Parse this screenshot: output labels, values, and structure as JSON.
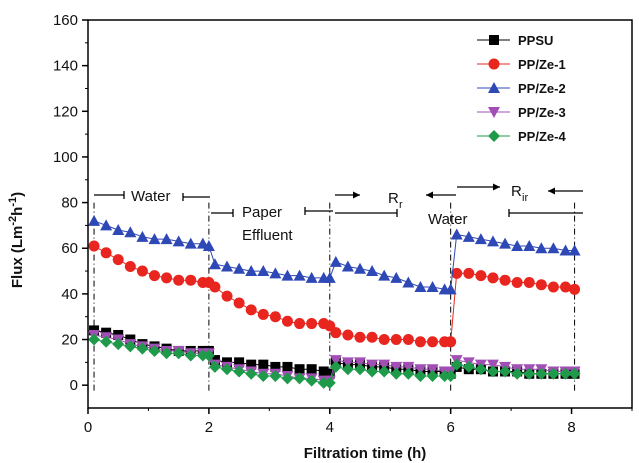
{
  "chart_data": {
    "type": "line",
    "title": "",
    "xlabel": "Filtration time (h)",
    "ylabel_parts": [
      "Flux (Lm",
      "-2",
      "h",
      "-1",
      ")"
    ],
    "xlim": [
      0,
      9
    ],
    "ylim": [
      -10,
      160
    ],
    "xticks": [
      0,
      2,
      4,
      6,
      8
    ],
    "yticks": [
      0,
      20,
      40,
      60,
      80,
      100,
      120,
      140,
      160
    ],
    "grid": false,
    "legend_position": "top-right",
    "phase_dividers": [
      0.1,
      2.0,
      4.0,
      6.0,
      8.05
    ],
    "annotations": {
      "water": "Water",
      "paper": "Paper",
      "effluent": "Effluent",
      "rr_main": "R",
      "rr_sub": "r",
      "water2": "Water",
      "rir_main": "R",
      "rir_sub": "ir"
    },
    "series": [
      {
        "name": "PPSU",
        "color": "#000000",
        "marker": "square",
        "points": [
          [
            0.1,
            24
          ],
          [
            0.3,
            23
          ],
          [
            0.5,
            22
          ],
          [
            0.7,
            20
          ],
          [
            0.9,
            18
          ],
          [
            1.1,
            17
          ],
          [
            1.3,
            16
          ],
          [
            1.5,
            15
          ],
          [
            1.7,
            15
          ],
          [
            1.9,
            15
          ],
          [
            2.0,
            15
          ],
          [
            2.1,
            11
          ],
          [
            2.3,
            10
          ],
          [
            2.5,
            10
          ],
          [
            2.7,
            9
          ],
          [
            2.9,
            9
          ],
          [
            3.1,
            8
          ],
          [
            3.3,
            8
          ],
          [
            3.5,
            7
          ],
          [
            3.7,
            7
          ],
          [
            3.9,
            6
          ],
          [
            4.0,
            5
          ],
          [
            4.1,
            10
          ],
          [
            4.3,
            9
          ],
          [
            4.5,
            9
          ],
          [
            4.7,
            8
          ],
          [
            4.9,
            8
          ],
          [
            5.1,
            7
          ],
          [
            5.3,
            7
          ],
          [
            5.5,
            6
          ],
          [
            5.7,
            6
          ],
          [
            5.9,
            6
          ],
          [
            6.0,
            5
          ],
          [
            6.1,
            8
          ],
          [
            6.3,
            7
          ],
          [
            6.5,
            7
          ],
          [
            6.7,
            6
          ],
          [
            6.9,
            6
          ],
          [
            7.1,
            6
          ],
          [
            7.3,
            5
          ],
          [
            7.5,
            5
          ],
          [
            7.7,
            5
          ],
          [
            7.9,
            5
          ],
          [
            8.05,
            5
          ]
        ]
      },
      {
        "name": "PP/Ze-1",
        "color": "#e8251f",
        "marker": "circle",
        "points": [
          [
            0.1,
            61
          ],
          [
            0.3,
            58
          ],
          [
            0.5,
            55
          ],
          [
            0.7,
            52
          ],
          [
            0.9,
            50
          ],
          [
            1.1,
            48
          ],
          [
            1.3,
            47
          ],
          [
            1.5,
            46
          ],
          [
            1.7,
            46
          ],
          [
            1.9,
            45
          ],
          [
            2.0,
            45
          ],
          [
            2.1,
            43
          ],
          [
            2.3,
            39
          ],
          [
            2.5,
            36
          ],
          [
            2.7,
            33
          ],
          [
            2.9,
            31
          ],
          [
            3.1,
            30
          ],
          [
            3.3,
            28
          ],
          [
            3.5,
            27
          ],
          [
            3.7,
            27
          ],
          [
            3.9,
            27
          ],
          [
            4.0,
            26
          ],
          [
            4.1,
            23
          ],
          [
            4.3,
            22
          ],
          [
            4.5,
            21
          ],
          [
            4.7,
            21
          ],
          [
            4.9,
            20
          ],
          [
            5.1,
            20
          ],
          [
            5.3,
            20
          ],
          [
            5.5,
            19
          ],
          [
            5.7,
            19
          ],
          [
            5.9,
            19
          ],
          [
            6.0,
            19
          ],
          [
            6.1,
            49
          ],
          [
            6.3,
            49
          ],
          [
            6.5,
            48
          ],
          [
            6.7,
            47
          ],
          [
            6.9,
            46
          ],
          [
            7.1,
            45
          ],
          [
            7.3,
            45
          ],
          [
            7.5,
            44
          ],
          [
            7.7,
            43
          ],
          [
            7.9,
            43
          ],
          [
            8.05,
            42
          ]
        ]
      },
      {
        "name": "PP/Ze-2",
        "color": "#2e48b6",
        "marker": "triangle-up",
        "points": [
          [
            0.1,
            72
          ],
          [
            0.3,
            70
          ],
          [
            0.5,
            68
          ],
          [
            0.7,
            67
          ],
          [
            0.9,
            65
          ],
          [
            1.1,
            64
          ],
          [
            1.3,
            64
          ],
          [
            1.5,
            63
          ],
          [
            1.7,
            62
          ],
          [
            1.9,
            62
          ],
          [
            2.0,
            61
          ],
          [
            2.1,
            53
          ],
          [
            2.3,
            52
          ],
          [
            2.5,
            51
          ],
          [
            2.7,
            50
          ],
          [
            2.9,
            50
          ],
          [
            3.1,
            49
          ],
          [
            3.3,
            48
          ],
          [
            3.5,
            48
          ],
          [
            3.7,
            47
          ],
          [
            3.9,
            47
          ],
          [
            4.0,
            47
          ],
          [
            4.1,
            54
          ],
          [
            4.3,
            52
          ],
          [
            4.5,
            51
          ],
          [
            4.7,
            50
          ],
          [
            4.9,
            48
          ],
          [
            5.1,
            47
          ],
          [
            5.3,
            45
          ],
          [
            5.5,
            43
          ],
          [
            5.7,
            43
          ],
          [
            5.9,
            42
          ],
          [
            6.0,
            42
          ],
          [
            6.1,
            66
          ],
          [
            6.3,
            65
          ],
          [
            6.5,
            64
          ],
          [
            6.7,
            63
          ],
          [
            6.9,
            62
          ],
          [
            7.1,
            61
          ],
          [
            7.3,
            61
          ],
          [
            7.5,
            60
          ],
          [
            7.7,
            60
          ],
          [
            7.9,
            59
          ],
          [
            8.05,
            59
          ]
        ]
      },
      {
        "name": "PP/Ze-3",
        "color": "#a24fb5",
        "marker": "triangle-down",
        "points": [
          [
            0.1,
            22
          ],
          [
            0.3,
            21
          ],
          [
            0.5,
            20
          ],
          [
            0.7,
            18
          ],
          [
            0.9,
            17
          ],
          [
            1.1,
            16
          ],
          [
            1.3,
            15
          ],
          [
            1.5,
            15
          ],
          [
            1.7,
            14
          ],
          [
            1.9,
            14
          ],
          [
            2.0,
            14
          ],
          [
            2.1,
            9
          ],
          [
            2.3,
            8
          ],
          [
            2.5,
            7
          ],
          [
            2.7,
            6
          ],
          [
            2.9,
            5
          ],
          [
            3.1,
            5
          ],
          [
            3.3,
            4
          ],
          [
            3.5,
            3
          ],
          [
            3.7,
            3
          ],
          [
            3.9,
            2
          ],
          [
            4.0,
            2
          ],
          [
            4.1,
            11
          ],
          [
            4.3,
            10
          ],
          [
            4.5,
            10
          ],
          [
            4.7,
            9
          ],
          [
            4.9,
            9
          ],
          [
            5.1,
            8
          ],
          [
            5.3,
            8
          ],
          [
            5.5,
            7
          ],
          [
            5.7,
            7
          ],
          [
            5.9,
            6
          ],
          [
            6.0,
            6
          ],
          [
            6.1,
            11
          ],
          [
            6.3,
            10
          ],
          [
            6.5,
            9
          ],
          [
            6.7,
            9
          ],
          [
            6.9,
            8
          ],
          [
            7.1,
            7
          ],
          [
            7.3,
            7
          ],
          [
            7.5,
            7
          ],
          [
            7.7,
            6
          ],
          [
            7.9,
            6
          ],
          [
            8.05,
            6
          ]
        ]
      },
      {
        "name": "PP/Ze-4",
        "color": "#1e9a4a",
        "marker": "diamond",
        "points": [
          [
            0.1,
            20
          ],
          [
            0.3,
            19
          ],
          [
            0.5,
            18
          ],
          [
            0.7,
            17
          ],
          [
            0.9,
            16
          ],
          [
            1.1,
            15
          ],
          [
            1.3,
            14
          ],
          [
            1.5,
            14
          ],
          [
            1.7,
            13
          ],
          [
            1.9,
            13
          ],
          [
            2.0,
            13
          ],
          [
            2.1,
            8
          ],
          [
            2.3,
            7
          ],
          [
            2.5,
            6
          ],
          [
            2.7,
            5
          ],
          [
            2.9,
            4
          ],
          [
            3.1,
            4
          ],
          [
            3.3,
            3
          ],
          [
            3.5,
            3
          ],
          [
            3.7,
            2
          ],
          [
            3.9,
            1
          ],
          [
            4.0,
            1
          ],
          [
            4.1,
            8
          ],
          [
            4.3,
            7
          ],
          [
            4.5,
            7
          ],
          [
            4.7,
            6
          ],
          [
            4.9,
            6
          ],
          [
            5.1,
            5
          ],
          [
            5.3,
            5
          ],
          [
            5.5,
            4
          ],
          [
            5.7,
            4
          ],
          [
            5.9,
            4
          ],
          [
            6.0,
            4
          ],
          [
            6.1,
            9
          ],
          [
            6.3,
            8
          ],
          [
            6.5,
            7
          ],
          [
            6.7,
            6
          ],
          [
            6.9,
            6
          ],
          [
            7.1,
            5
          ],
          [
            7.3,
            5
          ],
          [
            7.5,
            5
          ],
          [
            7.7,
            5
          ],
          [
            7.9,
            5
          ],
          [
            8.05,
            5
          ]
        ]
      }
    ]
  }
}
